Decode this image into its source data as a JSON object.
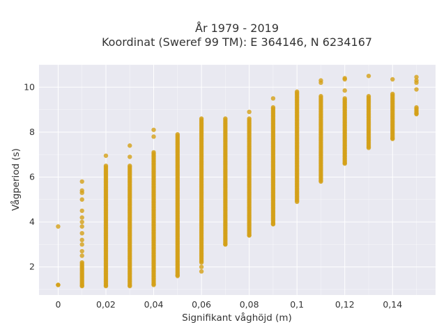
{
  "chart_data": {
    "type": "scatter",
    "title_line1": "År 1979 - 2019",
    "title_line2": "Koordinat (Sweref 99 TM): E 364146, N 6234167",
    "xlabel": "Signifikant våghöjd (m)",
    "ylabel": "Vågperiod (s)",
    "xlim": [
      -0.008,
      0.158
    ],
    "ylim": [
      0.75,
      11.0
    ],
    "xticks": [
      0,
      0.02,
      0.04,
      0.06,
      0.08,
      0.1,
      0.12,
      0.14
    ],
    "xtick_labels": [
      "0",
      "0,02",
      "0,04",
      "0,06",
      "0,08",
      "0,1",
      "0,12",
      "0,14"
    ],
    "yticks": [
      2,
      4,
      6,
      8,
      10
    ],
    "ytick_labels": [
      "2",
      "4",
      "6",
      "8",
      "10"
    ],
    "grid": true,
    "background": "#e9e9f1",
    "marker_color": "#d4a017",
    "columns": [
      {
        "x": 0.0,
        "ymin": 1.2,
        "ymax": 1.2,
        "outliers": [
          3.8
        ]
      },
      {
        "x": 0.01,
        "ymin": 1.15,
        "ymax": 2.2,
        "outliers": [
          2.5,
          2.7,
          3.0,
          3.2,
          3.5,
          3.8,
          4.0,
          4.2,
          4.5,
          5.0,
          5.3,
          5.4,
          5.8
        ]
      },
      {
        "x": 0.02,
        "ymin": 1.15,
        "ymax": 6.5,
        "outliers": [
          6.95
        ]
      },
      {
        "x": 0.03,
        "ymin": 1.15,
        "ymax": 6.5,
        "outliers": [
          6.9,
          7.4
        ]
      },
      {
        "x": 0.04,
        "ymin": 1.2,
        "ymax": 7.1,
        "outliers": [
          7.8,
          8.1
        ]
      },
      {
        "x": 0.05,
        "ymin": 1.6,
        "ymax": 7.9,
        "outliers": []
      },
      {
        "x": 0.06,
        "ymin": 2.2,
        "ymax": 8.6,
        "outliers": [
          1.8,
          2.0
        ]
      },
      {
        "x": 0.07,
        "ymin": 3.0,
        "ymax": 8.6,
        "outliers": []
      },
      {
        "x": 0.08,
        "ymin": 3.4,
        "ymax": 8.6,
        "outliers": [
          8.9
        ]
      },
      {
        "x": 0.09,
        "ymin": 3.9,
        "ymax": 9.1,
        "outliers": [
          9.5
        ]
      },
      {
        "x": 0.1,
        "ymin": 4.9,
        "ymax": 9.8,
        "outliers": []
      },
      {
        "x": 0.11,
        "ymin": 5.8,
        "ymax": 9.6,
        "outliers": [
          10.2,
          10.3
        ]
      },
      {
        "x": 0.12,
        "ymin": 6.6,
        "ymax": 9.5,
        "outliers": [
          9.85,
          10.35,
          10.4
        ]
      },
      {
        "x": 0.13,
        "ymin": 7.3,
        "ymax": 9.6,
        "outliers": [
          10.5
        ]
      },
      {
        "x": 0.14,
        "ymin": 7.7,
        "ymax": 9.7,
        "outliers": [
          10.35
        ]
      },
      {
        "x": 0.15,
        "ymin": 8.8,
        "ymax": 9.1,
        "outliers": [
          9.9,
          10.2,
          10.3,
          10.45
        ]
      }
    ]
  }
}
